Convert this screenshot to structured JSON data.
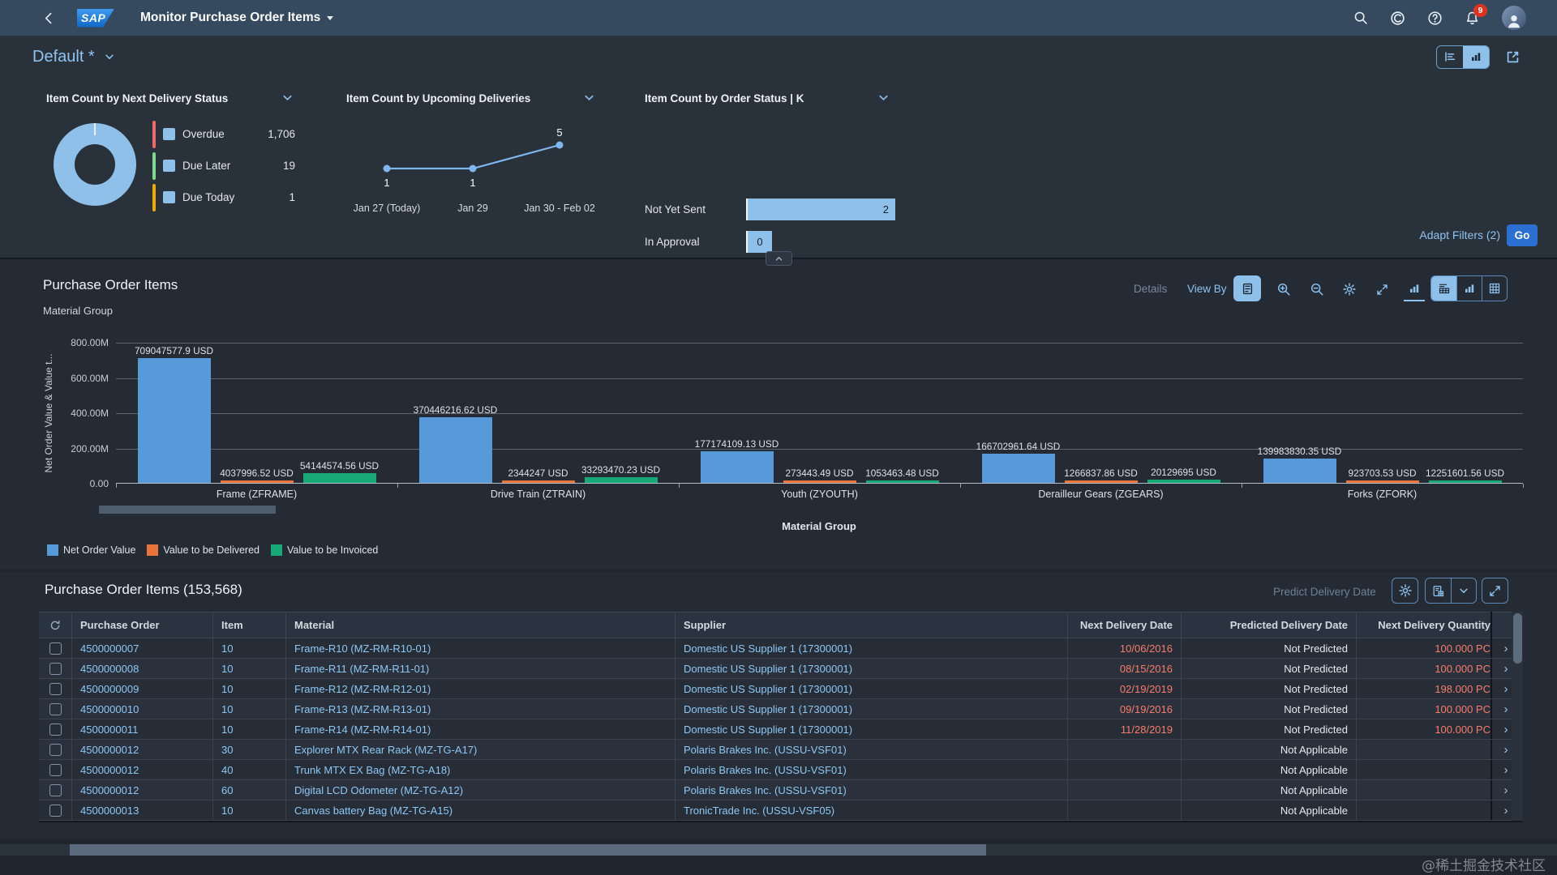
{
  "shell": {
    "title": "Monitor Purchase Order Items",
    "logo_text": "SAP",
    "notification_count": "9"
  },
  "variant": {
    "name": "Default *"
  },
  "filter_bar": {
    "adapt_filters_label": "Adapt Filters (2)",
    "go_label": "Go"
  },
  "icons": {
    "shell": [
      "back",
      "search",
      "copilot",
      "help",
      "notifications-bell",
      "avatar"
    ],
    "chart_toolbar": [
      "legend",
      "zoom-in",
      "zoom-out",
      "settings-gear",
      "fullscreen-expand",
      "bar-chart",
      "chart-table",
      "grid-table"
    ],
    "table_toolbar": [
      "settings-gear",
      "export-spreadsheet",
      "chevron-down",
      "fullscreen-expand"
    ]
  },
  "kpi_cards": [
    {
      "title": "Item Count by Next Delivery Status",
      "type": "donut",
      "donut_color": "#8fc0ea",
      "legend": [
        {
          "label": "Overdue",
          "value": "1,706",
          "bar_color": "#ee6a62"
        },
        {
          "label": "Due Later",
          "value": "19",
          "bar_color": "#82d88a"
        },
        {
          "label": "Due Today",
          "value": "1",
          "bar_color": "#f0ab00"
        }
      ]
    },
    {
      "title": "Item Count by Upcoming Deliveries",
      "type": "line",
      "line_color": "#7fb7f0",
      "points": [
        {
          "x_label": "Jan 27 (Today)",
          "value": 1
        },
        {
          "x_label": "Jan 29",
          "value": 1
        },
        {
          "x_label": "Jan 30 - Feb 02",
          "value": 5
        }
      ]
    },
    {
      "title": "Item Count by Order Status  | K",
      "type": "bar",
      "bar_color": "#8fc0ea",
      "bars": [
        {
          "label": "Not Yet Sent",
          "value": 2
        },
        {
          "label": "In Approval",
          "value": 0
        }
      ]
    }
  ],
  "chart_section": {
    "title": "Purchase Order Items",
    "dimension_label": "Material Group",
    "details_label": "Details",
    "view_by_label": "View By"
  },
  "chart_data": {
    "type": "bar",
    "title": "Purchase Order Items",
    "categories": [
      "Frame (ZFRAME)",
      "Drive Train (ZTRAIN)",
      "Youth (ZYOUTH)",
      "Derailleur Gears (ZGEARS)",
      "Forks (ZFORK)"
    ],
    "series": [
      {
        "name": "Net Order Value",
        "color": "#5899DA",
        "values": [
          709047577.9,
          370446216.62,
          177174109.13,
          166702961.64,
          139983830.35
        ],
        "labels": [
          "709047577.9 USD",
          "370446216.62 USD",
          "177174109.13 USD",
          "166702961.64 USD",
          "139983830.35 USD"
        ]
      },
      {
        "name": "Value to be Delivered",
        "color": "#E8743B",
        "values": [
          4037996.52,
          2344247,
          273443.49,
          1266837.86,
          923703.53
        ],
        "labels": [
          "4037996.52 USD",
          "2344247 USD",
          "273443.49 USD",
          "1266837.86 USD",
          "923703.53 USD"
        ]
      },
      {
        "name": "Value to be Invoiced",
        "color": "#19A979",
        "values": [
          54144574.56,
          33293470.23,
          1053463.48,
          20129695,
          12251601.56
        ],
        "labels": [
          "54144574.56 USD",
          "33293470.23 USD",
          "1053463.48 USD",
          "20129695 USD",
          "12251601.56 USD"
        ]
      }
    ],
    "xlabel": "Material Group",
    "ylabel": "Net Order Value & Value t...",
    "ylim": [
      0,
      800000000
    ],
    "yticks": [
      "800.00M",
      "600.00M",
      "400.00M",
      "200.00M",
      "0.00"
    ],
    "grid": true,
    "legend_position": "bottom"
  },
  "table_section": {
    "title": "Purchase Order Items (153,568)",
    "predict_label": "Predict Delivery Date",
    "columns": [
      "Purchase Order",
      "Item",
      "Material",
      "Supplier",
      "Next Delivery Date",
      "Predicted Delivery Date",
      "Next Delivery Quantity"
    ],
    "rows": [
      {
        "po": "4500000007",
        "item": "10",
        "material": "Frame-R10 (MZ-RM-R10-01)",
        "supplier": "Domestic US Supplier 1 (17300001)",
        "next_delivery_date": "10/06/2016",
        "predicted_delivery_date": "Not Predicted",
        "next_delivery_quantity": "100.000 PC"
      },
      {
        "po": "4500000008",
        "item": "10",
        "material": "Frame-R11 (MZ-RM-R11-01)",
        "supplier": "Domestic US Supplier 1 (17300001)",
        "next_delivery_date": "08/15/2016",
        "predicted_delivery_date": "Not Predicted",
        "next_delivery_quantity": "100.000 PC"
      },
      {
        "po": "4500000009",
        "item": "10",
        "material": "Frame-R12 (MZ-RM-R12-01)",
        "supplier": "Domestic US Supplier 1 (17300001)",
        "next_delivery_date": "02/19/2019",
        "predicted_delivery_date": "Not Predicted",
        "next_delivery_quantity": "198.000 PC"
      },
      {
        "po": "4500000010",
        "item": "10",
        "material": "Frame-R13 (MZ-RM-R13-01)",
        "supplier": "Domestic US Supplier 1 (17300001)",
        "next_delivery_date": "09/19/2016",
        "predicted_delivery_date": "Not Predicted",
        "next_delivery_quantity": "100.000 PC"
      },
      {
        "po": "4500000011",
        "item": "10",
        "material": "Frame-R14 (MZ-RM-R14-01)",
        "supplier": "Domestic US Supplier 1 (17300001)",
        "next_delivery_date": "11/28/2019",
        "predicted_delivery_date": "Not Predicted",
        "next_delivery_quantity": "100.000 PC"
      },
      {
        "po": "4500000012",
        "item": "30",
        "material": "Explorer MTX Rear Rack (MZ-TG-A17)",
        "supplier": "Polaris Brakes Inc. (USSU-VSF01)",
        "next_delivery_date": "",
        "predicted_delivery_date": "Not Applicable",
        "next_delivery_quantity": ""
      },
      {
        "po": "4500000012",
        "item": "40",
        "material": "Trunk MTX EX Bag (MZ-TG-A18)",
        "supplier": "Polaris Brakes Inc. (USSU-VSF01)",
        "next_delivery_date": "",
        "predicted_delivery_date": "Not Applicable",
        "next_delivery_quantity": ""
      },
      {
        "po": "4500000012",
        "item": "60",
        "material": "Digital LCD Odometer (MZ-TG-A12)",
        "supplier": "Polaris Brakes Inc. (USSU-VSF01)",
        "next_delivery_date": "",
        "predicted_delivery_date": "Not Applicable",
        "next_delivery_quantity": ""
      },
      {
        "po": "4500000013",
        "item": "10",
        "material": "Canvas battery Bag (MZ-TG-A15)",
        "supplier": "TronicTrade Inc. (USSU-VSF05)",
        "next_delivery_date": "",
        "predicted_delivery_date": "Not Applicable",
        "next_delivery_quantity": ""
      }
    ]
  },
  "watermark": "@稀土掘金技术社区",
  "colors": {
    "accent": "#8fc3f2",
    "critical_text": "#f87c6c",
    "link": "#8ec7f4",
    "badge": "#e0301e",
    "go_button": "#2b6fd1",
    "kpi_blue": "#8fc0ea",
    "shell_bg": "#354a5f",
    "panel_bg": "#242b34",
    "filter_bg": "#29313a"
  }
}
